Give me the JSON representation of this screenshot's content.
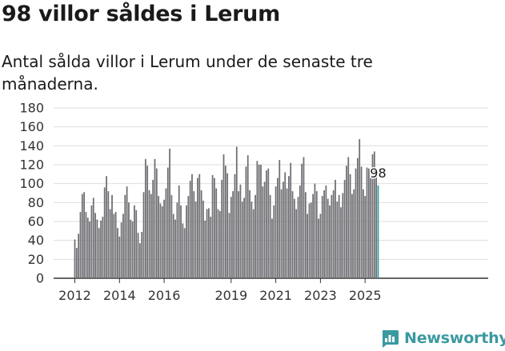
{
  "header": {
    "title": "98 villor såldes i Lerum",
    "subtitle": "Antal sålda villor i Lerum under de senaste tre månaderna."
  },
  "logo": {
    "text": "Newsworthy",
    "icon": "newsworthy-chart-icon",
    "color": "#3a9aa0"
  },
  "chart_data": {
    "type": "bar",
    "title": "",
    "xlabel": "",
    "ylabel": "",
    "ylim": [
      0,
      180
    ],
    "yticks": [
      "0",
      "20",
      "40",
      "60",
      "80",
      "100",
      "120",
      "140",
      "160",
      "180"
    ],
    "xticks": [
      {
        "label": "2012",
        "year": 2012
      },
      {
        "label": "2014",
        "year": 2014
      },
      {
        "label": "2016",
        "year": 2016
      },
      {
        "label": "2019",
        "year": 2019
      },
      {
        "label": "2021",
        "year": 2021
      },
      {
        "label": "2023",
        "year": 2023
      },
      {
        "label": "2025",
        "year": 2025
      }
    ],
    "grid": true,
    "bar_color": "#6e6d72",
    "highlight_color": "#2a9b9b",
    "highlight_label": "98",
    "start_month": "2012-01",
    "values": [
      41,
      32,
      47,
      70,
      89,
      91,
      70,
      64,
      60,
      77,
      85,
      69,
      62,
      53,
      61,
      65,
      96,
      108,
      92,
      73,
      88,
      68,
      70,
      53,
      44,
      59,
      68,
      88,
      97,
      80,
      62,
      60,
      77,
      72,
      48,
      37,
      49,
      91,
      126,
      119,
      93,
      89,
      104,
      126,
      116,
      87,
      79,
      76,
      83,
      95,
      117,
      137,
      88,
      68,
      62,
      80,
      98,
      77,
      58,
      53,
      77,
      87,
      103,
      110,
      92,
      81,
      106,
      110,
      93,
      82,
      61,
      73,
      74,
      65,
      109,
      106,
      95,
      73,
      71,
      104,
      131,
      119,
      111,
      69,
      86,
      92,
      110,
      139,
      92,
      99,
      81,
      85,
      118,
      130,
      93,
      81,
      73,
      88,
      124,
      120,
      120,
      97,
      102,
      114,
      116,
      88,
      63,
      77,
      97,
      106,
      125,
      94,
      102,
      112,
      95,
      108,
      122,
      92,
      84,
      73,
      86,
      98,
      121,
      128,
      91,
      68,
      79,
      80,
      89,
      100,
      92,
      63,
      68,
      87,
      93,
      98,
      84,
      77,
      88,
      93,
      104,
      81,
      88,
      75,
      90,
      104,
      119,
      128,
      110,
      89,
      94,
      116,
      127,
      147,
      118,
      94,
      87,
      117,
      116,
      110,
      131,
      134,
      110,
      98
    ]
  }
}
